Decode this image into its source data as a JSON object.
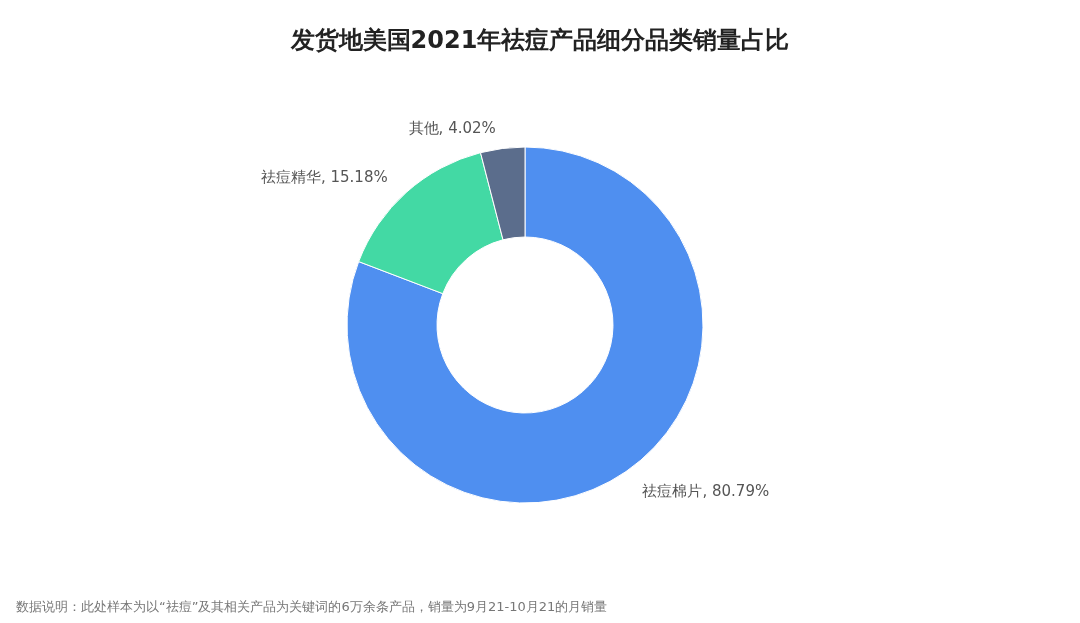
{
  "chart_data": {
    "type": "donut",
    "title": "发货地美国2021年祛痘产品细分品类销量占比",
    "categories": [
      "祛痘棉片",
      "祛痘精华",
      "其他"
    ],
    "values": [
      80.79,
      15.18,
      4.02
    ],
    "colors": [
      "#4f8ff0",
      "#43d9a4",
      "#5b6d8c"
    ],
    "value_labels": [
      ", 80.79%",
      ", 15.18%",
      ", 4.02%"
    ],
    "annotations": [
      "数据说明：此处样本为以“祛痘”及其相关产品为关键词的6万余条产品，销量为9月21-10月21的月销量"
    ]
  }
}
